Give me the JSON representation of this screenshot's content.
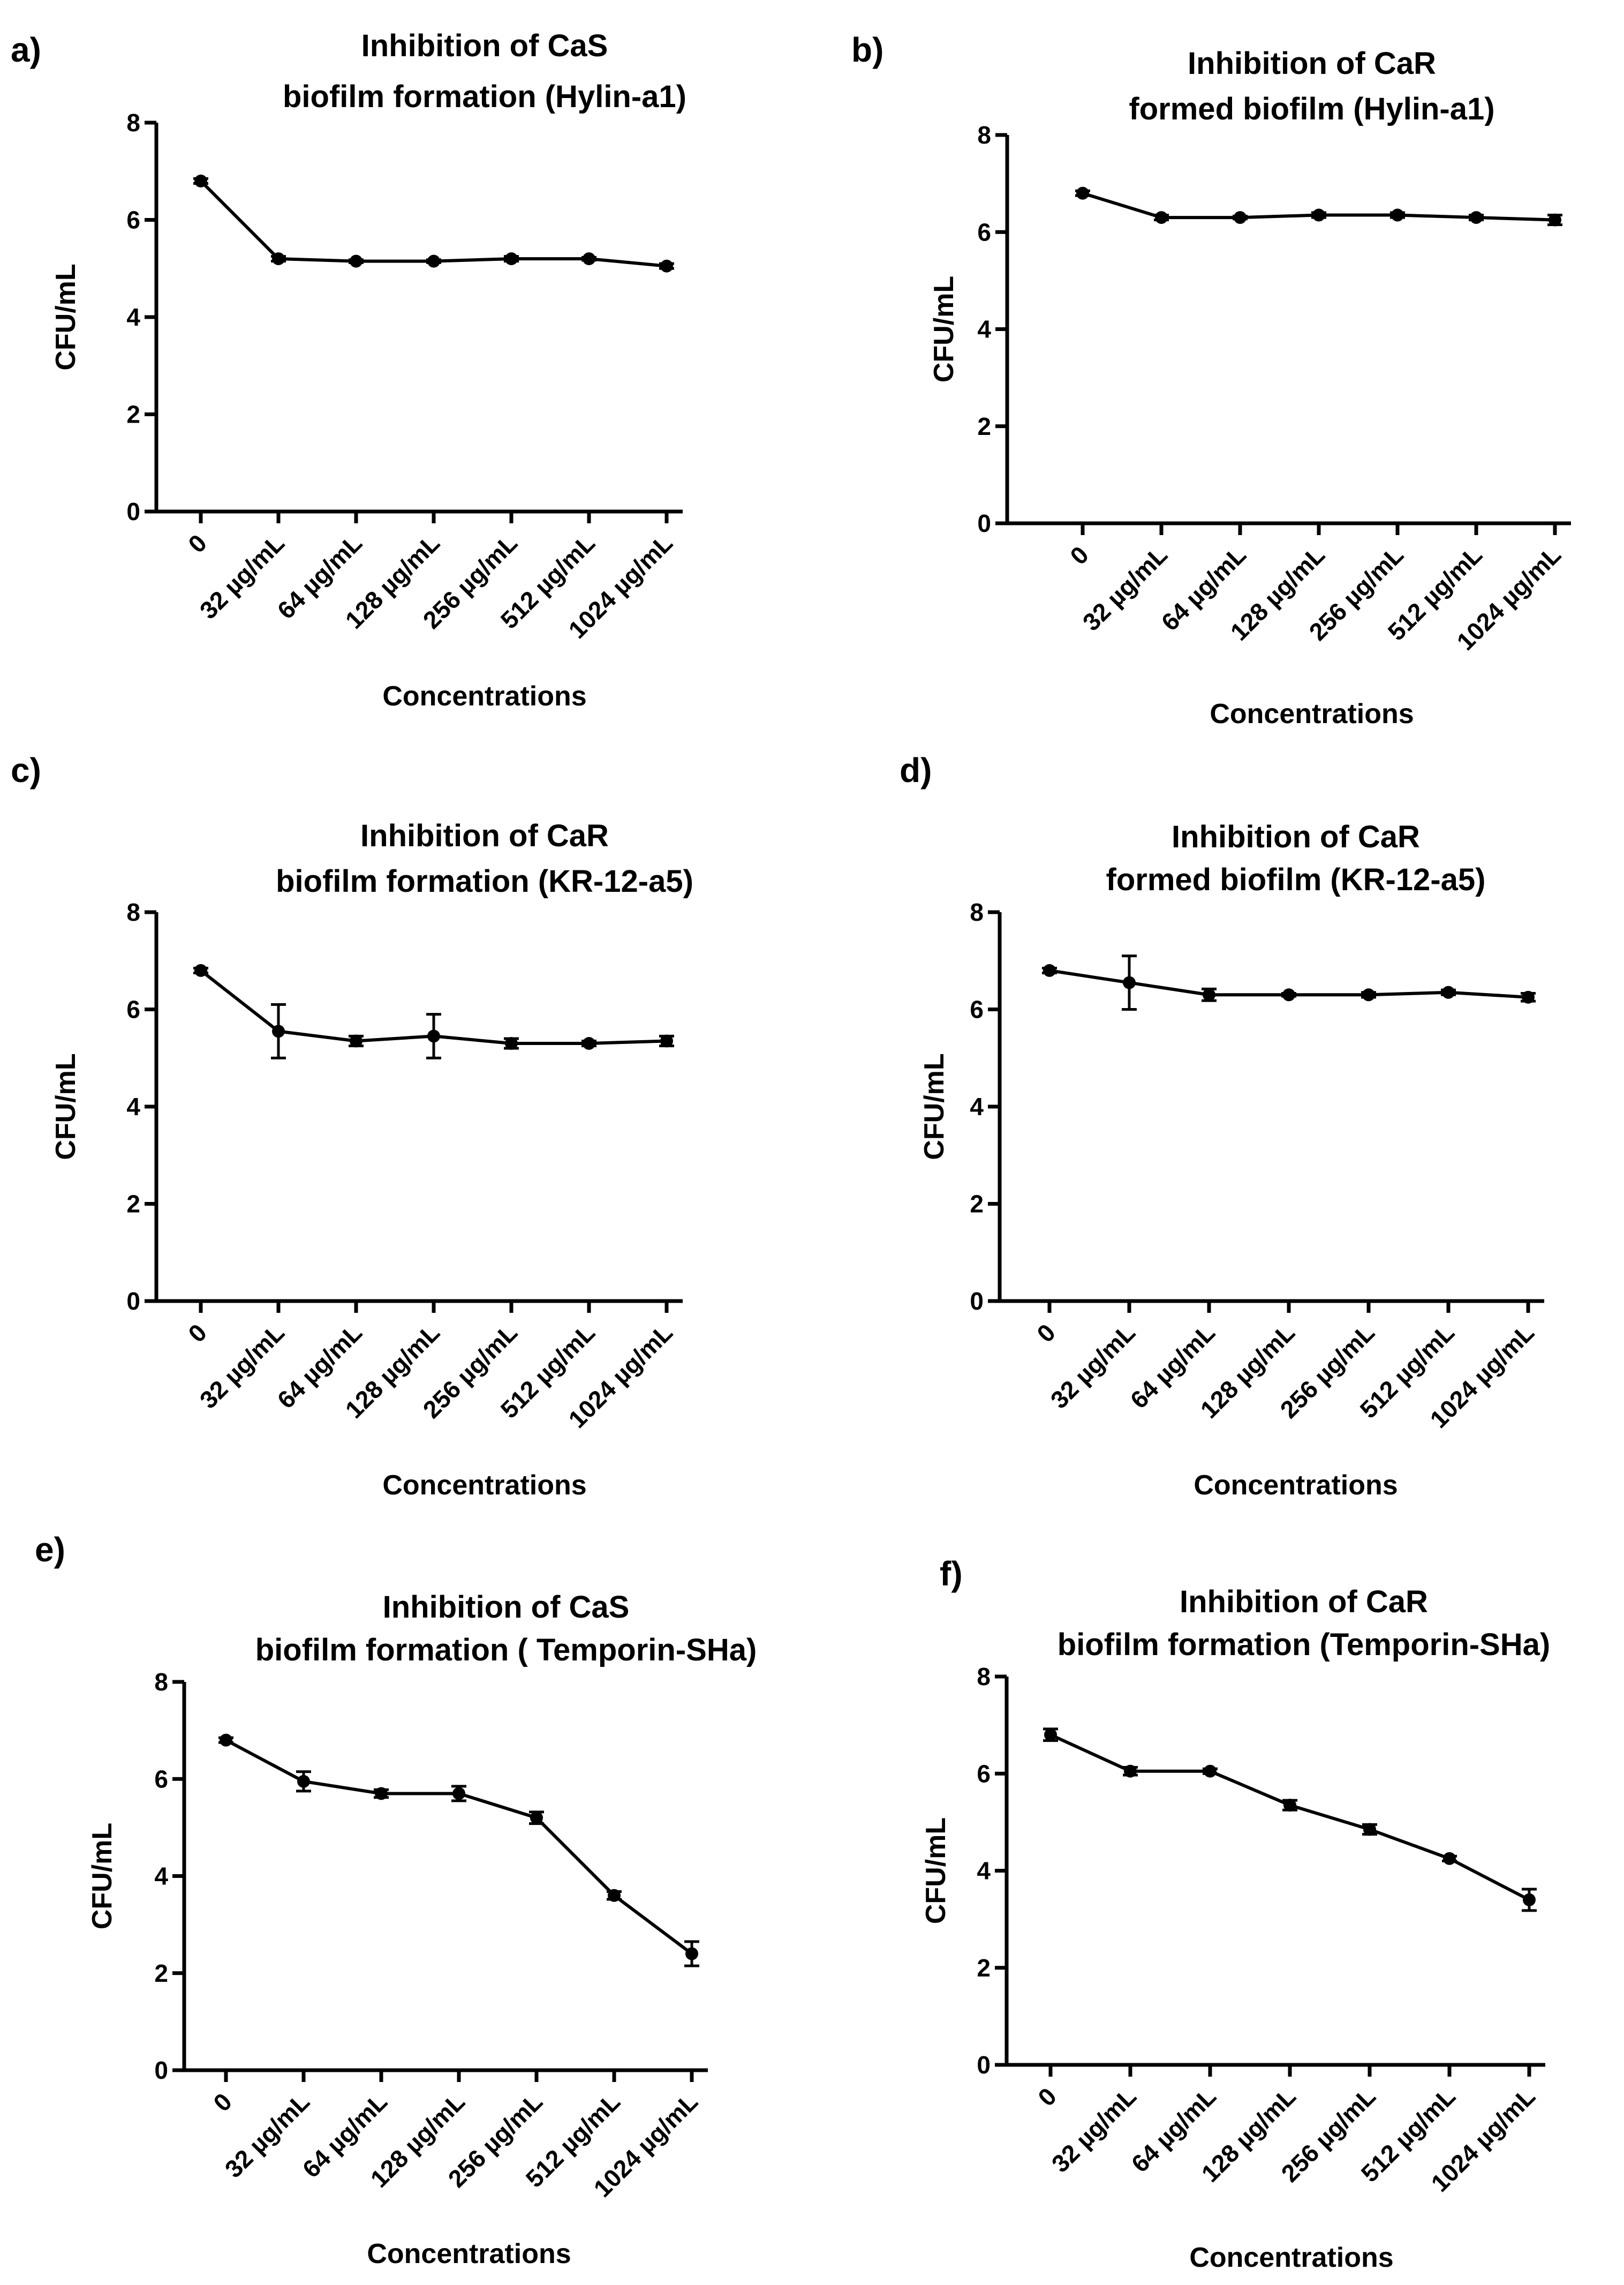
{
  "chart_data": [
    {
      "panel": "a)",
      "type": "line",
      "title": [
        "Inhibition of CaS",
        "biofilm formation (Hylin-a1)"
      ],
      "xlabel": "Concentrations",
      "ylabel": "CFU/mL",
      "ylim": [
        0,
        8
      ],
      "yticks": [
        "0",
        "2",
        "4",
        "6",
        "8"
      ],
      "categories": [
        "0",
        "32 µg/mL",
        "64 µg/mL",
        "128 µg/mL",
        "256 µg/mL",
        "512 µg/mL",
        "1024 µg/mL"
      ],
      "values": [
        6.8,
        5.2,
        5.15,
        5.15,
        5.2,
        5.2,
        5.05
      ],
      "errors": [
        0.05,
        0.05,
        0.03,
        0.03,
        0.05,
        0.03,
        0.05
      ]
    },
    {
      "panel": "b)",
      "type": "line",
      "title": [
        "Inhibition of CaR",
        "formed biofilm (Hylin-a1)"
      ],
      "xlabel": "Concentrations",
      "ylabel": "CFU/mL",
      "ylim": [
        0,
        8
      ],
      "yticks": [
        "0",
        "2",
        "4",
        "6",
        "8"
      ],
      "categories": [
        "0",
        "32 µg/mL",
        "64 µg/mL",
        "128 µg/mL",
        "256 µg/mL",
        "512 µg/mL",
        "1024 µg/mL"
      ],
      "values": [
        6.8,
        6.3,
        6.3,
        6.35,
        6.35,
        6.3,
        6.25
      ],
      "errors": [
        0.05,
        0.05,
        0.03,
        0.05,
        0.05,
        0.05,
        0.1
      ]
    },
    {
      "panel": "c)",
      "type": "line",
      "title": [
        "Inhibition of CaR",
        "biofilm formation (KR-12-a5)"
      ],
      "xlabel": "Concentrations",
      "ylabel": "CFU/mL",
      "ylim": [
        0,
        8
      ],
      "yticks": [
        "0",
        "2",
        "4",
        "6",
        "8"
      ],
      "categories": [
        "0",
        "32 µg/mL",
        "64 µg/mL",
        "128 µg/mL",
        "256 µg/mL",
        "512 µg/mL",
        "1024 µg/mL"
      ],
      "values": [
        6.8,
        5.55,
        5.35,
        5.45,
        5.3,
        5.3,
        5.35
      ],
      "errors": [
        0.05,
        0.55,
        0.1,
        0.45,
        0.1,
        0.05,
        0.1
      ]
    },
    {
      "panel": "d)",
      "type": "line",
      "title": [
        "Inhibition of CaR",
        "formed biofilm (KR-12-a5)"
      ],
      "xlabel": "Concentrations",
      "ylabel": "CFU/mL",
      "ylim": [
        0,
        8
      ],
      "yticks": [
        "0",
        "2",
        "4",
        "6",
        "8"
      ],
      "categories": [
        "0",
        "32 µg/mL",
        "64 µg/mL",
        "128 µg/mL",
        "256 µg/mL",
        "512 µg/mL",
        "1024 µg/mL"
      ],
      "values": [
        6.8,
        6.55,
        6.3,
        6.3,
        6.3,
        6.35,
        6.25
      ],
      "errors": [
        0.05,
        0.55,
        0.12,
        0.03,
        0.05,
        0.05,
        0.08
      ]
    },
    {
      "panel": "e)",
      "type": "line",
      "title": [
        "Inhibition of CaS",
        "biofilm formation ( Temporin-SHa)"
      ],
      "xlabel": "Concentrations",
      "ylabel": "CFU/mL",
      "ylim": [
        0,
        8
      ],
      "yticks": [
        "0",
        "2",
        "4",
        "6",
        "8"
      ],
      "categories": [
        "0",
        "32 µg/mL",
        "64 µg/mL",
        "128 µg/mL",
        "256 µg/mL",
        "512 µg/mL",
        "1024 µg/mL"
      ],
      "values": [
        6.8,
        5.95,
        5.7,
        5.7,
        5.2,
        3.6,
        2.4
      ],
      "errors": [
        0.05,
        0.2,
        0.08,
        0.15,
        0.12,
        0.08,
        0.25
      ]
    },
    {
      "panel": "f)",
      "type": "line",
      "title": [
        "Inhibition of CaR",
        "biofilm formation (Temporin-SHa)"
      ],
      "xlabel": "Concentrations",
      "ylabel": "CFU/mL",
      "ylim": [
        0,
        8
      ],
      "yticks": [
        "0",
        "2",
        "4",
        "6",
        "8"
      ],
      "categories": [
        "0",
        "32 µg/mL",
        "64 µg/mL",
        "128 µg/mL",
        "256 µg/mL",
        "512 µg/mL",
        "1024 µg/mL"
      ],
      "values": [
        6.8,
        6.05,
        6.05,
        5.35,
        4.85,
        4.25,
        3.4
      ],
      "errors": [
        0.12,
        0.08,
        0.05,
        0.1,
        0.1,
        0.05,
        0.22
      ]
    }
  ]
}
